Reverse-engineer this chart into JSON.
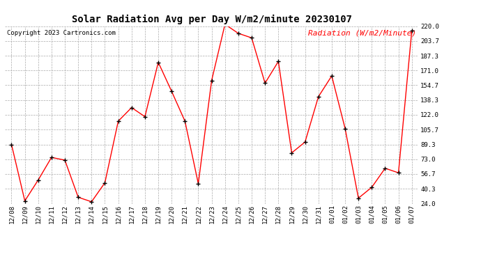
{
  "title": "Solar Radiation Avg per Day W/m2/minute 20230107",
  "copyright": "Copyright 2023 Cartronics.com",
  "legend_label": "Radiation (W/m2/Minute)",
  "dates": [
    "12/08",
    "12/09",
    "12/10",
    "12/11",
    "12/12",
    "12/13",
    "12/14",
    "12/15",
    "12/16",
    "12/17",
    "12/18",
    "12/19",
    "12/20",
    "12/21",
    "12/22",
    "12/23",
    "12/24",
    "12/25",
    "12/26",
    "12/27",
    "12/28",
    "12/29",
    "12/30",
    "12/31",
    "01/01",
    "01/02",
    "01/03",
    "01/04",
    "01/05",
    "01/06",
    "01/07"
  ],
  "values": [
    89.3,
    27.0,
    50.0,
    75.0,
    72.0,
    31.0,
    26.0,
    47.0,
    115.0,
    130.0,
    120.0,
    180.0,
    148.0,
    115.0,
    46.0,
    160.0,
    222.0,
    212.0,
    207.0,
    157.0,
    181.0,
    80.0,
    92.0,
    142.0,
    165.0,
    107.0,
    30.0,
    42.0,
    63.0,
    58.0,
    215.0
  ],
  "ylim": [
    24.0,
    220.0
  ],
  "yticks": [
    24.0,
    40.3,
    56.7,
    73.0,
    89.3,
    105.7,
    122.0,
    138.3,
    154.7,
    171.0,
    187.3,
    203.7,
    220.0
  ],
  "line_color": "red",
  "marker_color": "black",
  "bg_color": "white",
  "grid_color": "#aaaaaa",
  "title_color": "black",
  "copyright_color": "black",
  "legend_color": "red",
  "title_fontsize": 10,
  "copyright_fontsize": 6.5,
  "legend_fontsize": 8,
  "tick_fontsize": 6.5,
  "ytick_fontsize": 6.5
}
